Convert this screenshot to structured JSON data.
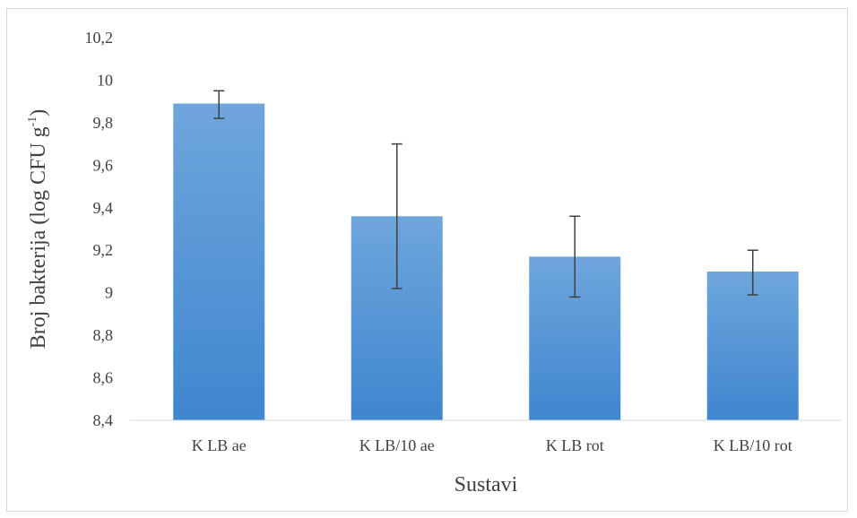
{
  "chart_data": {
    "type": "bar",
    "title": "",
    "xlabel": "Sustavi",
    "ylabel_main": "Broj bakterija (log CFU g",
    "ylabel_sup": "-1",
    "ylabel_tail": ")",
    "categories": [
      "K LB ae",
      "K LB/10 ae",
      "K LB rot",
      "K LB/10 rot"
    ],
    "values": [
      9.89,
      9.36,
      9.17,
      9.1
    ],
    "error_low": [
      9.82,
      9.02,
      8.98,
      8.99
    ],
    "error_high": [
      9.95,
      9.7,
      9.36,
      9.2
    ],
    "ylim": [
      8.4,
      10.2
    ],
    "yticks": [
      "8,4",
      "8,6",
      "8,8",
      "9",
      "9,2",
      "9,4",
      "9,6",
      "9,8",
      "10",
      "10,2"
    ],
    "ytick_values": [
      8.4,
      8.6,
      8.8,
      9.0,
      9.2,
      9.4,
      9.6,
      9.8,
      10.0,
      10.2
    ],
    "grid": false,
    "legend": "none",
    "colors": {
      "bar_top": "#6fa6dc",
      "bar_bottom": "#3f86cf",
      "error_bar": "#404040",
      "axis": "#d9d9d9"
    }
  }
}
